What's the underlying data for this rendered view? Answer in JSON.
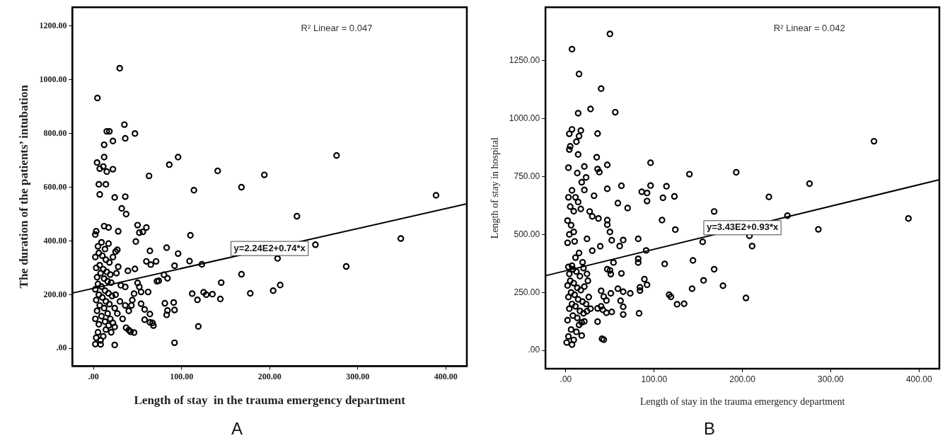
{
  "chart_data": [
    {
      "type": "scatter",
      "title": "A",
      "xlabel": "Length of stay  in the trauma emergency department",
      "ylabel": "The duration of the patients’ intubation",
      "xlim": [
        -24,
        424
      ],
      "ylim": [
        -66,
        1270
      ],
      "xticks": [
        {
          "value": 0,
          "label": ".00"
        },
        {
          "value": 100,
          "label": "100.00"
        },
        {
          "value": 200,
          "label": "200.00"
        },
        {
          "value": 300,
          "label": "300.00"
        },
        {
          "value": 400,
          "label": "400.00"
        }
      ],
      "yticks": [
        {
          "value": 0,
          "label": ".00"
        },
        {
          "value": 200,
          "label": "200.00"
        },
        {
          "value": 400,
          "label": "400.00"
        },
        {
          "value": 600,
          "label": "600.00"
        },
        {
          "value": 800,
          "label": "800.00"
        },
        {
          "value": 1000,
          "label": "1000.00"
        },
        {
          "value": 1200,
          "label": "1200.00"
        }
      ],
      "grid": false,
      "legend": false,
      "annotations": [
        "R² Linear = 0.047",
        {
          "text": "y=2.24E2+0.74*x",
          "x": 200,
          "y": 372
        }
      ],
      "series": [
        {
          "marker": "circle",
          "color": "#000000",
          "x": [
            29.7,
            4.4,
            35,
            36,
            47,
            15,
            18,
            12,
            22,
            4,
            12,
            7,
            11,
            15,
            22,
            6,
            14,
            7,
            24,
            36,
            32,
            37,
            86,
            96,
            63,
            114,
            141,
            168,
            194,
            276,
            389,
            231,
            349,
            252,
            209,
            287,
            168,
            145,
            212,
            204,
            178,
            144,
            135,
            125,
            128,
            112,
            118,
            119,
            92,
            110,
            123,
            109,
            96,
            92,
            83,
            80,
            84,
            81,
            91,
            84,
            92,
            83,
            64,
            60,
            65,
            71,
            72,
            74,
            50,
            60,
            52,
            56,
            48,
            39,
            47,
            31,
            36,
            50,
            52,
            54,
            46,
            62,
            54,
            43,
            58,
            64,
            58,
            67,
            64,
            68,
            37,
            42,
            46,
            40,
            24,
            2,
            28,
            28,
            3,
            2,
            12,
            17,
            27,
            3,
            5,
            8,
            11,
            14,
            6,
            2,
            9,
            13,
            17,
            20,
            4,
            7,
            12,
            16,
            19,
            22,
            3,
            6,
            10,
            14,
            18,
            24,
            2,
            5,
            9,
            13,
            17,
            21,
            4,
            8,
            12,
            16,
            20,
            3,
            7,
            11,
            15,
            19,
            2,
            6,
            10,
            14,
            18,
            22,
            5,
            9,
            13,
            17,
            25,
            25,
            26,
            24,
            8,
            27,
            30,
            33,
            36,
            40,
            44
          ],
          "values": [
            1043,
            932,
            833,
            782,
            800,
            808,
            808,
            758,
            772,
            692,
            712,
            669,
            677,
            658,
            667,
            611,
            611,
            573,
            562,
            565,
            521,
            500,
            684,
            712,
            642,
            589,
            661,
            600,
            646,
            718,
            570,
            492,
            409,
            386,
            335,
            305,
            276,
            245,
            236,
            215,
            205,
            184,
            202,
            209,
            200,
            204,
            181,
            82,
            21,
            421,
            313,
            325,
            353,
            308,
            375,
            274,
            261,
            168,
            171,
            141,
            143,
            125,
            363,
            324,
            312,
            324,
            250,
            252,
            459,
            450,
            431,
            434,
            398,
            289,
            296,
            235,
            229,
            244,
            229,
            210,
            204,
            210,
            166,
            160,
            145,
            128,
            107,
            95,
            97,
            85,
            77,
            62,
            59,
            68,
            13,
            16,
            436,
            304,
            436,
            424,
            455,
            450,
            367,
            40,
            60,
            30,
            45,
            70,
            90,
            110,
            120,
            100,
            85,
            60,
            140,
            160,
            150,
            130,
            110,
            95,
            180,
            200,
            190,
            175,
            165,
            150,
            220,
            240,
            230,
            215,
            205,
            195,
            265,
            280,
            260,
            250,
            245,
            300,
            310,
            295,
            285,
            275,
            340,
            355,
            345,
            330,
            320,
            340,
            380,
            395,
            370,
            390,
            360,
            200,
            280,
            80,
            15,
            130,
            175,
            110,
            160,
            140,
            180
          ]
        },
        {
          "type": "line",
          "marker": "none",
          "color": "#000000",
          "x": [
            -24,
            424
          ],
          "values": [
            206,
            538
          ]
        }
      ]
    },
    {
      "type": "scatter",
      "title": "B",
      "xlabel": "Length of stay in the trauma emergency department",
      "ylabel": "Length of stay in hospital",
      "xlim": [
        -23,
        423
      ],
      "ylim": [
        -79,
        1480
      ],
      "xticks": [
        {
          "value": 0,
          "label": ".00"
        },
        {
          "value": 100,
          "label": "100.00"
        },
        {
          "value": 200,
          "label": "200.00"
        },
        {
          "value": 300,
          "label": "300.00"
        },
        {
          "value": 400,
          "label": "400.00"
        }
      ],
      "yticks": [
        {
          "value": 0,
          "label": ".00"
        },
        {
          "value": 250,
          "label": "250.00"
        },
        {
          "value": 500,
          "label": "500.00"
        },
        {
          "value": 750,
          "label": "750.00"
        },
        {
          "value": 1000,
          "label": "1000.00"
        },
        {
          "value": 1250,
          "label": "1250.00"
        }
      ],
      "grid": false,
      "legend": false,
      "annotations": [
        "R² Linear = 0.042",
        {
          "text": "y=3.43E2+0.93*x",
          "x": 200,
          "y": 529
        }
      ],
      "series": [
        {
          "marker": "circle",
          "color": "#000000",
          "x": [
            50,
            7,
            15,
            40,
            28,
            14,
            56,
            7,
            17,
            4,
            12,
            15,
            36,
            5,
            4,
            3,
            13,
            21,
            23,
            14,
            35,
            36,
            38,
            47,
            96,
            140,
            193,
            349,
            276,
            230,
            251,
            388,
            286,
            211,
            208,
            168,
            155,
            144,
            168,
            156,
            178,
            204,
            143,
            126,
            134,
            117,
            119,
            112,
            109,
            124,
            110,
            114,
            123,
            96,
            92,
            92,
            86,
            91,
            82,
            82,
            82,
            84,
            84,
            83,
            89,
            92,
            63,
            59,
            70,
            47,
            47,
            47,
            50,
            52,
            65,
            61,
            54,
            50,
            47,
            51,
            63,
            27,
            30,
            37,
            32,
            24,
            30,
            39,
            21,
            18,
            4,
            2,
            9,
            59,
            65,
            73,
            62,
            65,
            65,
            52,
            46,
            42,
            40,
            36,
            36,
            41,
            43,
            40,
            43,
            46,
            51,
            24,
            21,
            18,
            7,
            1,
            3,
            6,
            9,
            12,
            15,
            2,
            8,
            13,
            18,
            4,
            7,
            11,
            16,
            20,
            3,
            6,
            10,
            14,
            19,
            23,
            2,
            5,
            9,
            13,
            17,
            21,
            4,
            8,
            12,
            16,
            20,
            24,
            3,
            7,
            11,
            15,
            19,
            5,
            9,
            3,
            7,
            11,
            14,
            2,
            6,
            10,
            17,
            25,
            26,
            28
          ],
          "values": [
            1365,
            1299,
            1192,
            1129,
            1041,
            1023,
            1027,
            953,
            948,
            934,
            900,
            924,
            935,
            880,
            866,
            788,
            765,
            793,
            746,
            845,
            833,
            782,
            769,
            800,
            809,
            760,
            768,
            902,
            719,
            662,
            581,
            569,
            522,
            450,
            494,
            599,
            468,
            388,
            350,
            302,
            279,
            226,
            266,
            199,
            201,
            240,
            231,
            373,
            562,
            521,
            658,
            708,
            664,
            711,
            679,
            644,
            684,
            431,
            395,
            379,
            481,
            272,
            258,
            160,
            307,
            283,
            710,
            635,
            614,
            697,
            562,
            542,
            511,
            475,
            476,
            450,
            379,
            345,
            350,
            329,
            332,
            599,
            578,
            569,
            667,
            481,
            430,
            449,
            692,
            725,
            500,
            464,
            511,
            266,
            253,
            246,
            214,
            188,
            155,
            166,
            162,
            175,
            190,
            181,
            124,
            50,
            46,
            257,
            232,
            215,
            246,
            169,
            125,
            64,
            25,
            34,
            60,
            90,
            45,
            80,
            110,
            130,
            150,
            140,
            120,
            180,
            200,
            190,
            170,
            160,
            230,
            250,
            240,
            220,
            210,
            200,
            280,
            300,
            290,
            270,
            260,
            275,
            330,
            350,
            340,
            320,
            355,
            330,
            360,
            365,
            400,
            420,
            380,
            620,
            600,
            660,
            690,
            660,
            640,
            560,
            540,
            470,
            610,
            300,
            230,
            180
          ]
        },
        {
          "type": "line",
          "marker": "none",
          "color": "#000000",
          "x": [
            -23,
            423
          ],
          "values": [
            322,
            736
          ]
        }
      ]
    }
  ]
}
